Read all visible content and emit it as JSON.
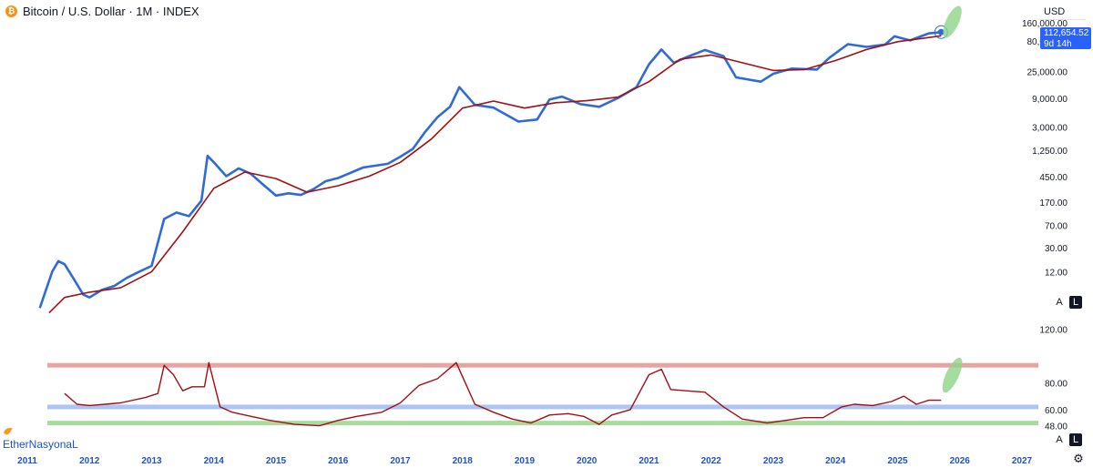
{
  "header": {
    "symbol_title": "Bitcoin / U.S. Dollar · 1M · INDEX",
    "icon": "bitcoin-icon"
  },
  "price_scale": {
    "currency": "USD",
    "last_price": "112,654.52",
    "countdown": "9d 14h",
    "scale_mode_a": "A",
    "scale_mode_l": "L",
    "tick_labels": [
      "160,000.00",
      "80,000.00",
      "25,000.00",
      "9,000.00",
      "3,000.00",
      "1,250.00",
      "450.00",
      "170.00",
      "70.00",
      "30.00",
      "12.00"
    ]
  },
  "indicator_scale": {
    "tick_labels": [
      "120.00",
      "80.00",
      "60.00",
      "48.00"
    ]
  },
  "time_axis": {
    "labels": [
      "2011",
      "2012",
      "2013",
      "2014",
      "2015",
      "2016",
      "2017",
      "2018",
      "2019",
      "2020",
      "2021",
      "2022",
      "2023",
      "2024",
      "2025",
      "2026",
      "2027"
    ]
  },
  "watermark": {
    "text": "EtherNasyonaL",
    "icon": "bird-icon"
  },
  "colors": {
    "price_line": "#2f6bd8",
    "moving_average": "#a10f12",
    "indicator_line": "#a10f12",
    "upper_band": "#e8a3a3",
    "middle_band": "#aec4f2",
    "lower_band": "#a9dba0",
    "projection_ellipse": "#8fd48a",
    "axis_text": "#1e53c7"
  },
  "chart_data": [
    {
      "type": "line",
      "scale": "log",
      "ylim": [
        2,
        220000
      ],
      "series": [
        {
          "values": [
            [
              2011.2,
              3
            ],
            [
              2011.4,
              12
            ],
            [
              2011.5,
              18
            ],
            [
              2011.6,
              16
            ],
            [
              2011.75,
              9
            ],
            [
              2011.9,
              5
            ],
            [
              2012.0,
              4.5
            ],
            [
              2012.2,
              6
            ],
            [
              2012.4,
              7
            ],
            [
              2012.6,
              9.5
            ],
            [
              2012.8,
              12
            ],
            [
              2013.0,
              15
            ],
            [
              2013.2,
              90
            ],
            [
              2013.4,
              115
            ],
            [
              2013.6,
              100
            ],
            [
              2013.8,
              180
            ],
            [
              2013.9,
              1000
            ],
            [
              2014.0,
              780
            ],
            [
              2014.2,
              460
            ],
            [
              2014.4,
              620
            ],
            [
              2014.6,
              500
            ],
            [
              2014.8,
              330
            ],
            [
              2015.0,
              220
            ],
            [
              2015.2,
              240
            ],
            [
              2015.4,
              225
            ],
            [
              2015.6,
              280
            ],
            [
              2015.8,
              380
            ],
            [
              2016.0,
              430
            ],
            [
              2016.4,
              640
            ],
            [
              2016.8,
              740
            ],
            [
              2017.0,
              970
            ],
            [
              2017.2,
              1300
            ],
            [
              2017.4,
              2500
            ],
            [
              2017.6,
              4400
            ],
            [
              2017.8,
              6500
            ],
            [
              2017.95,
              13800
            ],
            [
              2018.2,
              7000
            ],
            [
              2018.5,
              6300
            ],
            [
              2018.9,
              3700
            ],
            [
              2019.2,
              4000
            ],
            [
              2019.4,
              8600
            ],
            [
              2019.6,
              9600
            ],
            [
              2019.9,
              7200
            ],
            [
              2020.2,
              6500
            ],
            [
              2020.5,
              9100
            ],
            [
              2020.8,
              13800
            ],
            [
              2021.0,
              33000
            ],
            [
              2021.2,
              58000
            ],
            [
              2021.4,
              35000
            ],
            [
              2021.6,
              43000
            ],
            [
              2021.9,
              57000
            ],
            [
              2022.2,
              45000
            ],
            [
              2022.4,
              20000
            ],
            [
              2022.8,
              17000
            ],
            [
              2023.0,
              23000
            ],
            [
              2023.3,
              28000
            ],
            [
              2023.7,
              27000
            ],
            [
              2023.9,
              42000
            ],
            [
              2024.2,
              71000
            ],
            [
              2024.5,
              64000
            ],
            [
              2024.8,
              70000
            ],
            [
              2024.95,
              96000
            ],
            [
              2025.2,
              82000
            ],
            [
              2025.5,
              107000
            ],
            [
              2025.7,
              112654.52
            ]
          ]
        },
        {
          "values": [
            [
              2011.35,
              2.5
            ],
            [
              2011.6,
              4.5
            ],
            [
              2012.0,
              5.5
            ],
            [
              2012.5,
              6.5
            ],
            [
              2013.0,
              12
            ],
            [
              2013.5,
              55
            ],
            [
              2014.0,
              290
            ],
            [
              2014.5,
              540
            ],
            [
              2015.0,
              420
            ],
            [
              2015.5,
              250
            ],
            [
              2016.0,
              320
            ],
            [
              2016.5,
              460
            ],
            [
              2017.0,
              780
            ],
            [
              2017.5,
              1900
            ],
            [
              2018.0,
              6200
            ],
            [
              2018.5,
              8100
            ],
            [
              2019.0,
              6200
            ],
            [
              2019.5,
              7600
            ],
            [
              2020.0,
              8200
            ],
            [
              2020.5,
              9400
            ],
            [
              2021.0,
              17000
            ],
            [
              2021.5,
              40000
            ],
            [
              2022.0,
              47000
            ],
            [
              2022.5,
              35000
            ],
            [
              2023.0,
              26000
            ],
            [
              2023.5,
              27000
            ],
            [
              2024.0,
              38000
            ],
            [
              2024.5,
              58000
            ],
            [
              2025.0,
              78000
            ],
            [
              2025.7,
              98000
            ]
          ]
        }
      ]
    },
    {
      "type": "line",
      "ylim": [
        45,
        125
      ],
      "bands": [
        93,
        62,
        50
      ],
      "series": [
        {
          "values": [
            [
              2011.6,
              72
            ],
            [
              2011.8,
              64
            ],
            [
              2012.0,
              63
            ],
            [
              2012.5,
              65
            ],
            [
              2012.9,
              69
            ],
            [
              2013.1,
              72
            ],
            [
              2013.2,
              93
            ],
            [
              2013.35,
              86
            ],
            [
              2013.5,
              74
            ],
            [
              2013.65,
              77
            ],
            [
              2013.85,
              77
            ],
            [
              2013.92,
              95
            ],
            [
              2014.1,
              62
            ],
            [
              2014.3,
              58
            ],
            [
              2014.6,
              55
            ],
            [
              2014.9,
              52
            ],
            [
              2015.3,
              49
            ],
            [
              2015.7,
              48
            ],
            [
              2016.0,
              52
            ],
            [
              2016.3,
              55
            ],
            [
              2016.7,
              58
            ],
            [
              2017.0,
              65
            ],
            [
              2017.3,
              78
            ],
            [
              2017.6,
              83
            ],
            [
              2017.9,
              95
            ],
            [
              2018.2,
              64
            ],
            [
              2018.5,
              58
            ],
            [
              2018.8,
              53
            ],
            [
              2019.1,
              50
            ],
            [
              2019.4,
              56
            ],
            [
              2019.7,
              57
            ],
            [
              2019.95,
              55
            ],
            [
              2020.2,
              49
            ],
            [
              2020.4,
              56
            ],
            [
              2020.7,
              60
            ],
            [
              2021.0,
              86
            ],
            [
              2021.2,
              90
            ],
            [
              2021.35,
              75
            ],
            [
              2021.6,
              74
            ],
            [
              2021.9,
              73
            ],
            [
              2022.2,
              62
            ],
            [
              2022.5,
              53
            ],
            [
              2022.9,
              50
            ],
            [
              2023.2,
              52
            ],
            [
              2023.5,
              54
            ],
            [
              2023.8,
              54
            ],
            [
              2024.1,
              62
            ],
            [
              2024.3,
              64
            ],
            [
              2024.6,
              63
            ],
            [
              2024.9,
              66
            ],
            [
              2025.1,
              70
            ],
            [
              2025.3,
              64
            ],
            [
              2025.5,
              67
            ],
            [
              2025.7,
              67
            ]
          ]
        }
      ]
    }
  ]
}
